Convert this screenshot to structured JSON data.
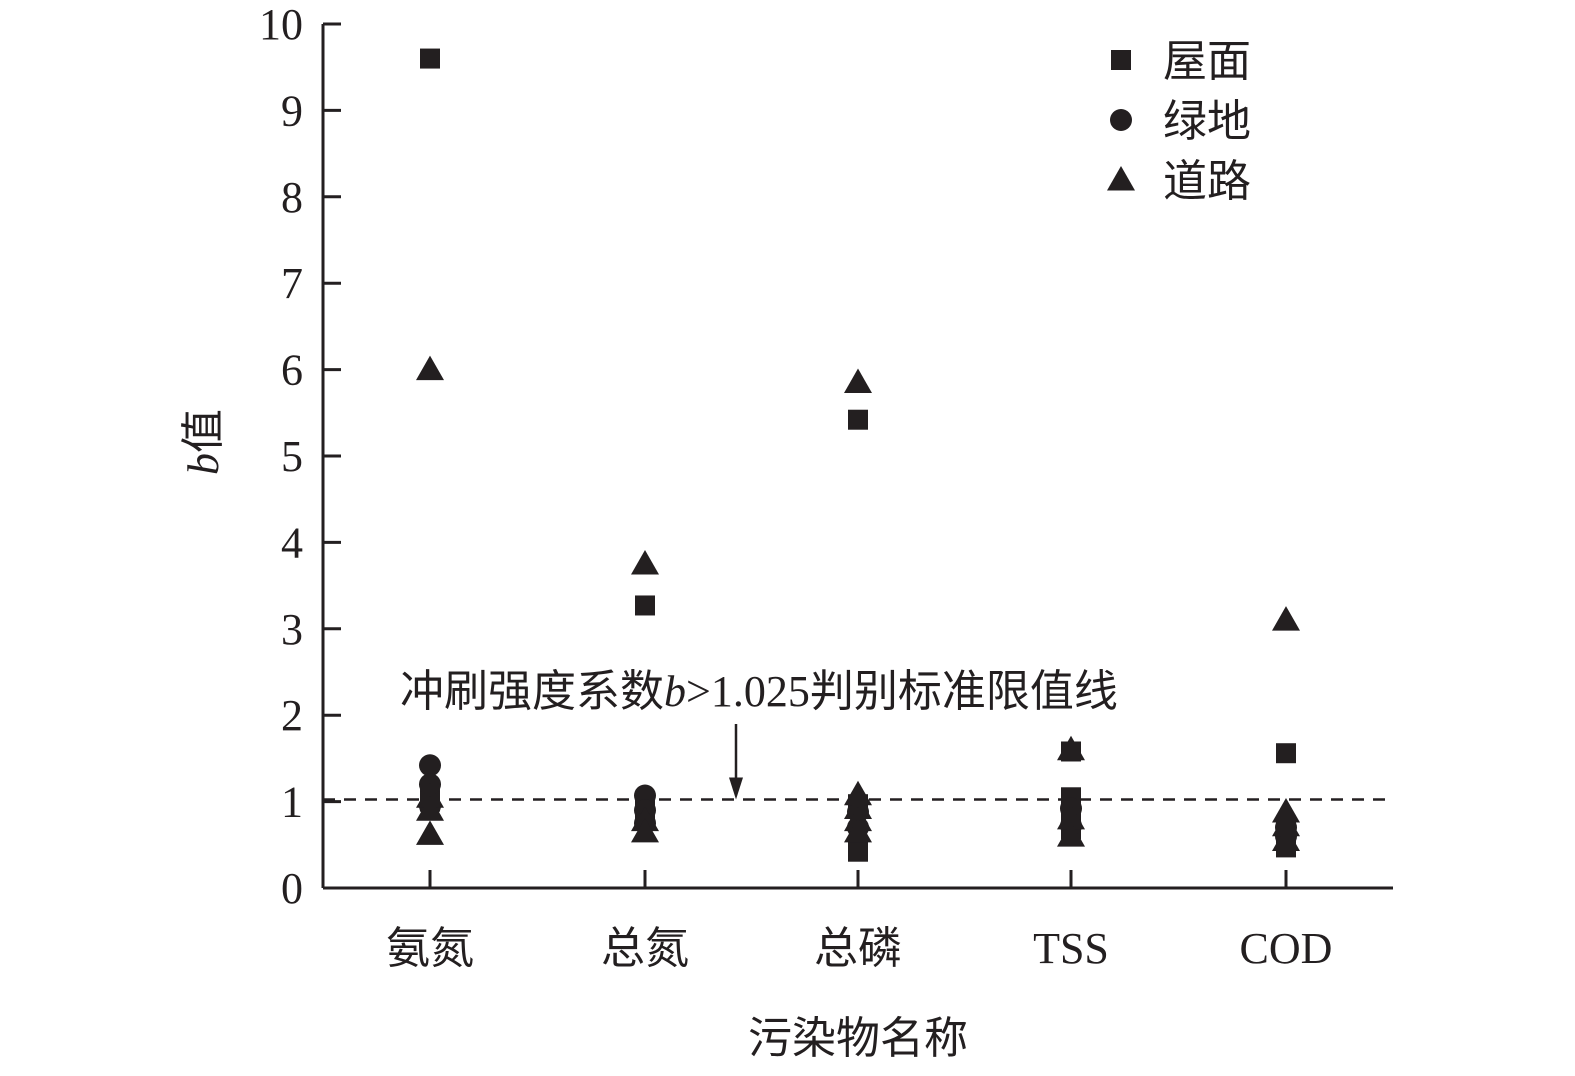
{
  "chart_data": {
    "type": "scatter",
    "xlabel": "污染物名称",
    "ylabel_italic": "b",
    "ylabel_rest": "值",
    "categories": [
      "氨氮",
      "总氮",
      "总磷",
      "TSS",
      "COD"
    ],
    "ylim": [
      0,
      10
    ],
    "yticks": [
      "0",
      "1",
      "2",
      "3",
      "4",
      "5",
      "6",
      "7",
      "8",
      "9",
      "10"
    ],
    "legend_position": "top-right",
    "series": [
      {
        "name": "屋面",
        "marker": "square",
        "points": [
          {
            "cat": 0,
            "y": 9.6
          },
          {
            "cat": 0,
            "y": 1.1
          },
          {
            "cat": 0,
            "y": 1.0
          },
          {
            "cat": 1,
            "y": 3.27
          },
          {
            "cat": 1,
            "y": 1.0
          },
          {
            "cat": 1,
            "y": 0.85
          },
          {
            "cat": 2,
            "y": 5.42
          },
          {
            "cat": 2,
            "y": 0.97
          },
          {
            "cat": 2,
            "y": 0.42
          },
          {
            "cat": 3,
            "y": 1.58
          },
          {
            "cat": 3,
            "y": 1.05
          },
          {
            "cat": 3,
            "y": 0.85
          },
          {
            "cat": 3,
            "y": 0.68
          },
          {
            "cat": 4,
            "y": 1.56
          },
          {
            "cat": 4,
            "y": 0.72
          },
          {
            "cat": 4,
            "y": 0.47
          }
        ]
      },
      {
        "name": "绿地",
        "marker": "circle",
        "points": [
          {
            "cat": 0,
            "y": 1.42
          },
          {
            "cat": 0,
            "y": 1.2
          },
          {
            "cat": 0,
            "y": 0.95
          },
          {
            "cat": 1,
            "y": 1.07
          },
          {
            "cat": 1,
            "y": 0.9
          },
          {
            "cat": 1,
            "y": 0.75
          },
          {
            "cat": 2,
            "y": 0.88
          },
          {
            "cat": 2,
            "y": 0.7
          },
          {
            "cat": 3,
            "y": 0.92
          },
          {
            "cat": 3,
            "y": 0.72
          },
          {
            "cat": 4,
            "y": 0.7
          },
          {
            "cat": 4,
            "y": 0.6
          }
        ]
      },
      {
        "name": "道路",
        "marker": "triangle",
        "points": [
          {
            "cat": 0,
            "y": 6.0
          },
          {
            "cat": 0,
            "y": 1.05
          },
          {
            "cat": 0,
            "y": 0.9
          },
          {
            "cat": 0,
            "y": 0.62
          },
          {
            "cat": 1,
            "y": 3.75
          },
          {
            "cat": 1,
            "y": 0.78
          },
          {
            "cat": 1,
            "y": 0.65
          },
          {
            "cat": 2,
            "y": 5.85
          },
          {
            "cat": 2,
            "y": 1.08
          },
          {
            "cat": 2,
            "y": 0.92
          },
          {
            "cat": 2,
            "y": 0.78
          },
          {
            "cat": 2,
            "y": 0.65
          },
          {
            "cat": 3,
            "y": 1.6
          },
          {
            "cat": 3,
            "y": 0.8
          },
          {
            "cat": 3,
            "y": 0.6
          },
          {
            "cat": 4,
            "y": 3.1
          },
          {
            "cat": 4,
            "y": 0.88
          },
          {
            "cat": 4,
            "y": 0.72
          },
          {
            "cat": 4,
            "y": 0.55
          }
        ]
      }
    ],
    "reference_line": {
      "y": 1.025,
      "style": "dashed"
    },
    "annotation": {
      "text_before": "冲刷强度系数",
      "text_italic": "b",
      "text_after": ">1.025判别标准限值线",
      "arrow_target_y": 1.025
    }
  }
}
